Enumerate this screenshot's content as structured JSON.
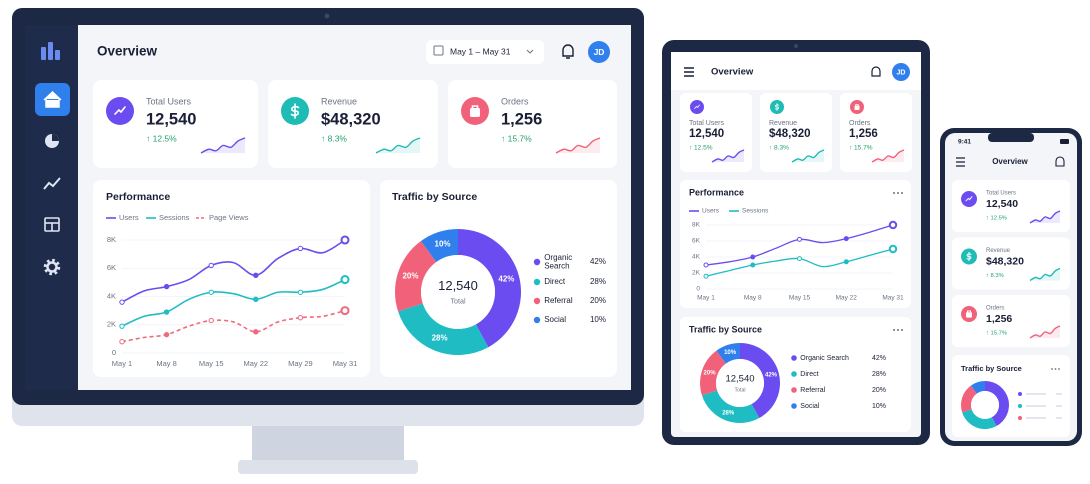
{
  "desktop": {
    "title": "Overview",
    "date_range": "May 1 – May 31",
    "avatar": "JD"
  },
  "tablet": {
    "title": "Overview",
    "avatar": "JD"
  },
  "phone": {
    "time": "9:41",
    "title": "Overview"
  },
  "kpis": [
    {
      "label": "Total Users",
      "value": "12,540",
      "change": "↑ 12.5%",
      "color": "#6a4cf0"
    },
    {
      "label": "Revenue",
      "value": "$48,320",
      "change": "↑ 8.3%",
      "color": "#1fbcb6"
    },
    {
      "label": "Orders",
      "value": "1,256",
      "change": "↑ 15.7%",
      "color": "#f2617a"
    }
  ],
  "performance": {
    "type": "line",
    "title": "Performance",
    "categories": [
      "May 1",
      null,
      "May 8",
      null,
      "May 15",
      null,
      "May 22",
      null,
      "May 29",
      null,
      "May 31"
    ],
    "series": [
      {
        "name": "Users",
        "color": "#6a4cf0",
        "values": [
          3600,
          4400,
          4700,
          5200,
          6200,
          6400,
          5500,
          6700,
          7400,
          7100,
          8000
        ]
      },
      {
        "name": "Sessions",
        "color": "#1fbcc4",
        "values": [
          1900,
          2600,
          2900,
          3800,
          4300,
          4200,
          3800,
          4300,
          4300,
          4500,
          5200
        ]
      },
      {
        "name": "Page Views",
        "color": "#f06a7e",
        "dashed": true,
        "values": [
          800,
          1100,
          1300,
          1900,
          2300,
          2200,
          1500,
          2200,
          2500,
          2600,
          3000
        ]
      }
    ],
    "ylim": [
      0,
      8000
    ],
    "yticks": [
      0,
      {
        "value": 2000,
        "label": "2K"
      },
      {
        "value": 4000,
        "label": "4K"
      },
      {
        "value": 6000,
        "label": "6K"
      },
      {
        "value": 8000,
        "label": "8K"
      }
    ],
    "grid": true
  },
  "performance_tablet": {
    "type": "line",
    "title": "Performance",
    "categories": [
      "May 1",
      null,
      "May 8",
      null,
      "May 15",
      null,
      "May 22",
      null,
      "May 31"
    ],
    "series": [
      {
        "name": "Users",
        "color": "#6a4cf0",
        "values": [
          3000,
          3400,
          4000,
          5100,
          6200,
          5800,
          6300,
          7100,
          8000
        ]
      },
      {
        "name": "Sessions",
        "color": "#1fbcc4",
        "values": [
          1600,
          2300,
          3000,
          3500,
          3800,
          2800,
          3400,
          4200,
          5000
        ]
      }
    ],
    "ylim": [
      0,
      8000
    ],
    "yticks": [
      0,
      {
        "value": 2000,
        "label": "2K"
      },
      {
        "value": 4000,
        "label": "4K"
      },
      {
        "value": 6000,
        "label": "6K"
      },
      {
        "value": 8000,
        "label": "8K"
      }
    ],
    "grid": true
  },
  "traffic": {
    "type": "pie",
    "title": "Traffic by Source",
    "total": "12,540",
    "total_label": "Total",
    "categories": [
      "Organic Search",
      "Direct",
      "Referral",
      "Social"
    ],
    "values": [
      42,
      28,
      20,
      10
    ],
    "value_labels": [
      "42%",
      "28%",
      "20%",
      "10%"
    ],
    "colors": [
      "#6a4cf0",
      "#1fbcc4",
      "#f2617a",
      "#2f80ed"
    ]
  }
}
